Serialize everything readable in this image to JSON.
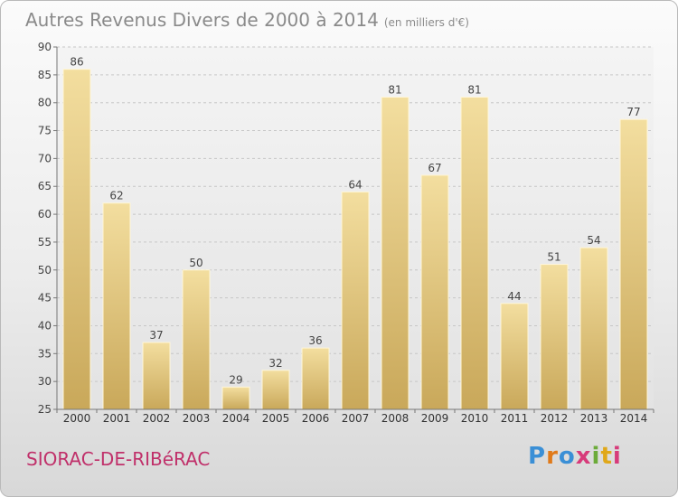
{
  "chart_data": {
    "type": "bar",
    "title": "Autres Revenus Divers de 2000 à 2014",
    "subtitle": "(en milliers d'€)",
    "categories": [
      "2000",
      "2001",
      "2002",
      "2003",
      "2004",
      "2005",
      "2006",
      "2007",
      "2008",
      "2009",
      "2010",
      "2011",
      "2012",
      "2013",
      "2014"
    ],
    "values": [
      86,
      62,
      37,
      50,
      29,
      32,
      36,
      64,
      81,
      67,
      81,
      44,
      51,
      54,
      77
    ],
    "ylim": [
      25,
      90
    ],
    "yticks": [
      25,
      30,
      35,
      40,
      45,
      50,
      55,
      60,
      65,
      70,
      75,
      80,
      85,
      90
    ],
    "grid": true,
    "bar_color": "#e7c97f"
  },
  "footer": {
    "commune": "SIORAC-DE-RIBéRAC",
    "logo": "Proxiti",
    "logo_colors": [
      "#3a8fd6",
      "#e07a1a",
      "#3a8fd6",
      "#d73b7a",
      "#6cab3a",
      "#e0a81a",
      "#d73b7a"
    ]
  }
}
